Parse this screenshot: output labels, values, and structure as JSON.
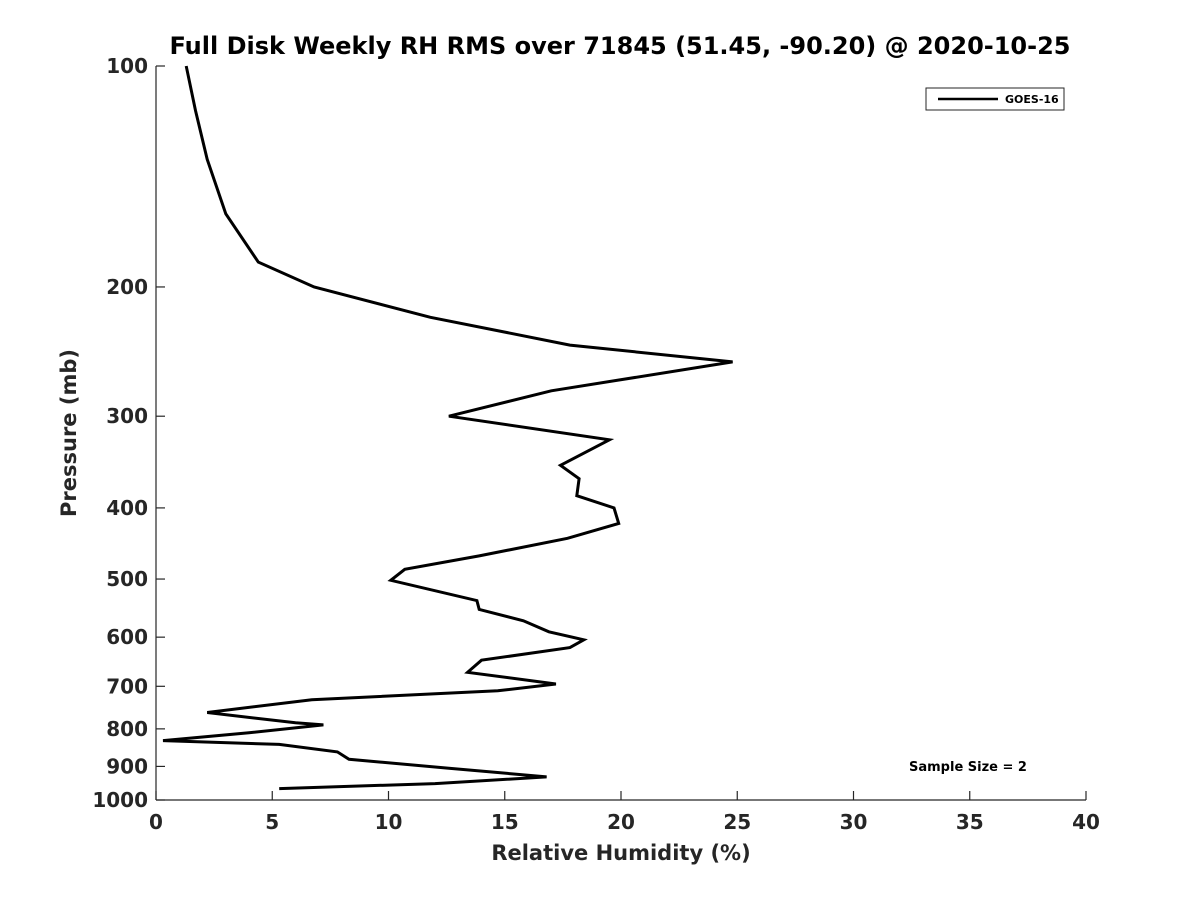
{
  "chart_data": {
    "type": "line",
    "title": "Full Disk Weekly RH RMS over 71845 (51.45, -90.20) @ 2020-10-25",
    "xlabel": "Relative Humidity (%)",
    "ylabel": "Pressure (mb)",
    "xlim": [
      0,
      40
    ],
    "ylim": [
      100,
      1000
    ],
    "yscale": "log",
    "y_direction": "reversed",
    "xticks": [
      0,
      5,
      10,
      15,
      20,
      25,
      30,
      35,
      40
    ],
    "yticks": [
      100,
      200,
      300,
      400,
      500,
      600,
      700,
      800,
      900,
      1000
    ],
    "grid": false,
    "legend_position": "top-right",
    "annotation": "Sample Size = 2",
    "series": [
      {
        "name": "GOES-16",
        "color": "#000000",
        "x": [
          1.3,
          1.7,
          2.2,
          3.0,
          4.4,
          6.8,
          11.8,
          17.8,
          24.8,
          17.0,
          12.6,
          19.5,
          17.4,
          18.2,
          18.1,
          19.7,
          19.9,
          17.7,
          13.9,
          10.7,
          10.1,
          13.8,
          13.9,
          15.8,
          16.9,
          18.4,
          17.8,
          14.0,
          13.4,
          17.2,
          14.7,
          6.7,
          2.2,
          6.0,
          7.2,
          4.0,
          0.3,
          5.3,
          7.8,
          8.3,
          12.6,
          16.8,
          12.0,
          5.3
        ],
        "y": [
          100,
          115,
          134,
          159,
          185,
          200,
          220,
          240,
          253,
          277,
          300,
          323,
          350,
          365,
          385,
          400,
          420,
          440,
          465,
          485,
          502,
          535,
          550,
          570,
          590,
          605,
          620,
          645,
          670,
          695,
          710,
          730,
          760,
          785,
          790,
          810,
          830,
          840,
          860,
          880,
          905,
          930,
          950,
          965
        ]
      }
    ]
  }
}
